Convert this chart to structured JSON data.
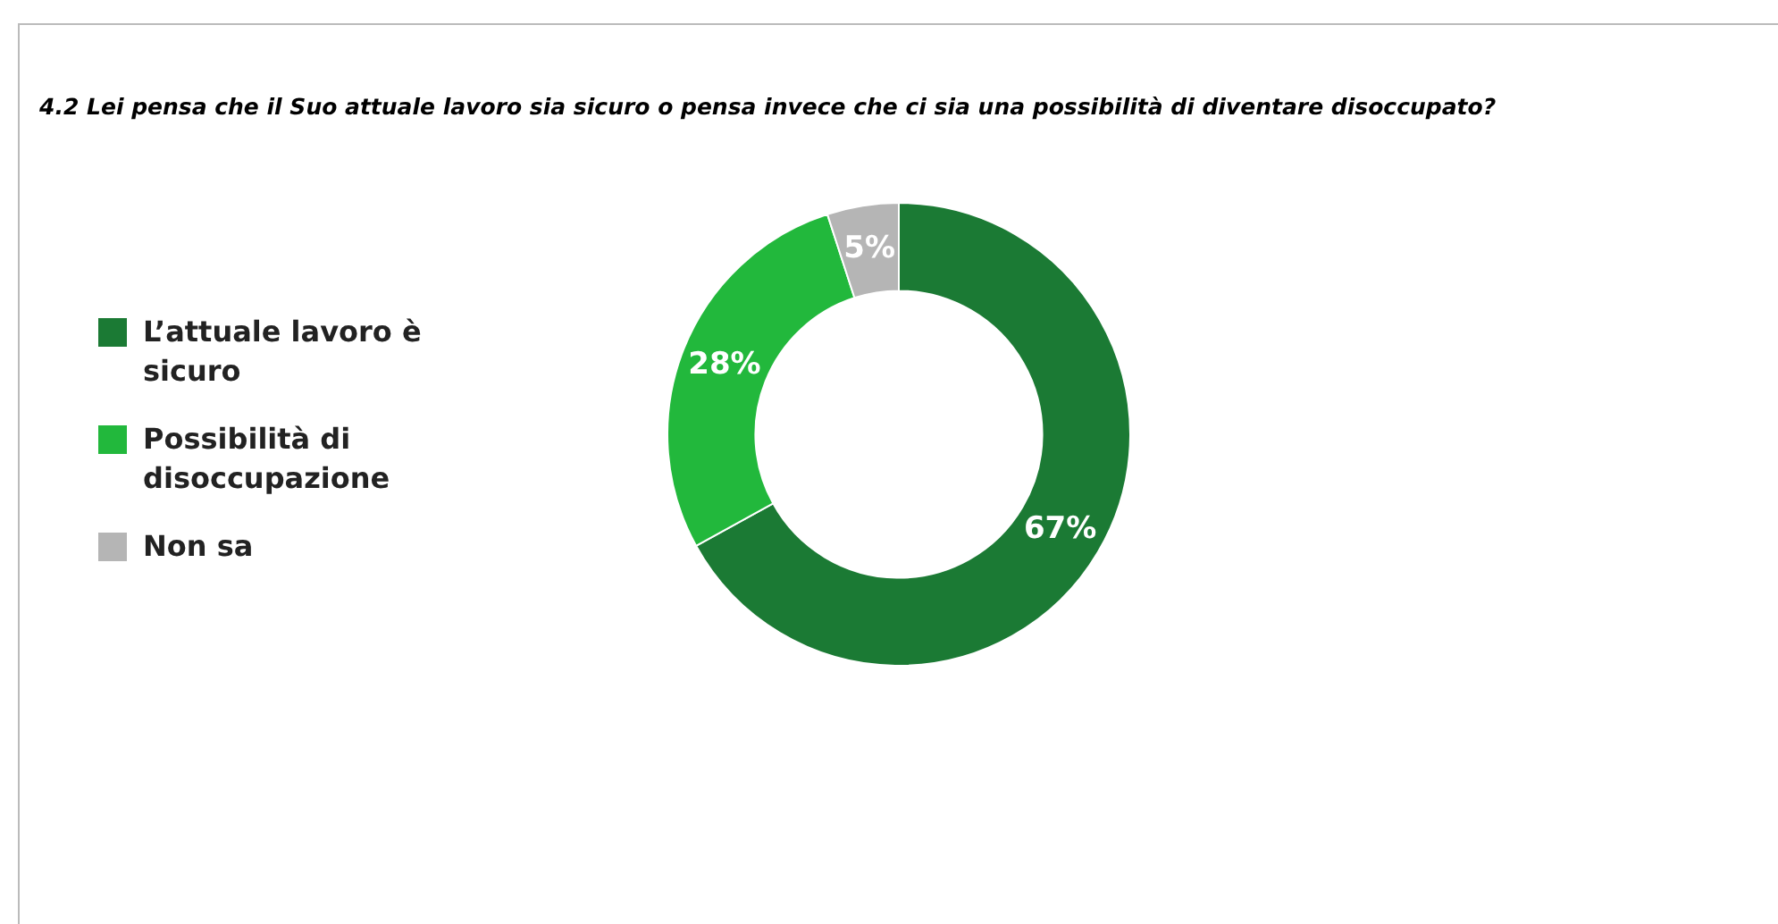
{
  "chart_data": {
    "type": "donut",
    "title": "4.2 Lei pensa che il Suo attuale lavoro sia sicuro o pensa invece che ci sia una possibilità di diventare disoccupato?",
    "categories": [
      "L’attuale lavoro è sicuro",
      "Possibilità di disoccupazione",
      "Non sa"
    ],
    "values": [
      67,
      28,
      5
    ],
    "colors": [
      "#1b7a34",
      "#22b83c",
      "#b5b5b5"
    ],
    "value_labels": [
      "67%",
      "28%",
      "5%"
    ],
    "legend": "left"
  }
}
